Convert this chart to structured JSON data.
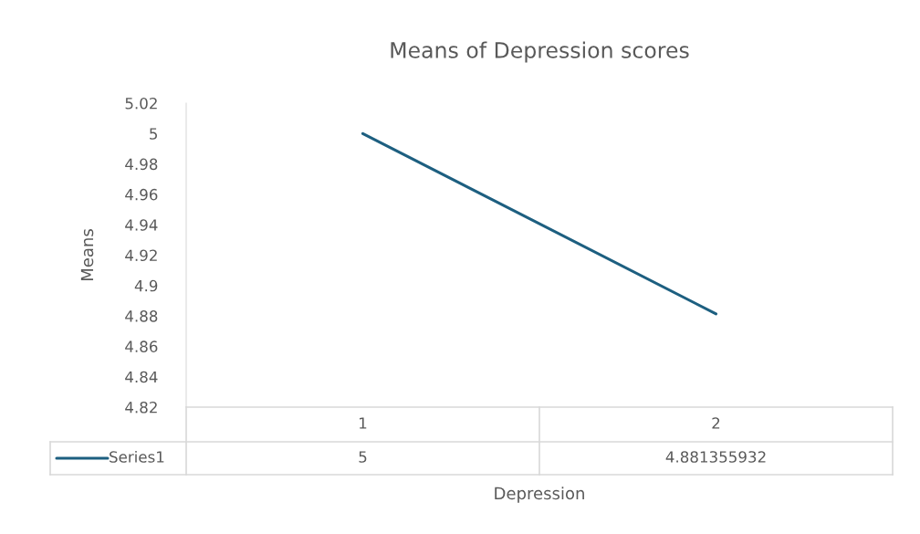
{
  "chart_data": {
    "type": "line",
    "title": "Means of Depression scores",
    "xlabel": "Depression",
    "ylabel": "Means",
    "categories": [
      "1",
      "2"
    ],
    "series": [
      {
        "name": "Series1",
        "color": "#1d5f80",
        "values": [
          5,
          4.881355932
        ]
      }
    ],
    "ylim": [
      4.82,
      5.02
    ],
    "yticks": [
      {
        "value": 5.02,
        "label": "5.02"
      },
      {
        "value": 5.0,
        "label": "5"
      },
      {
        "value": 4.98,
        "label": "4.98"
      },
      {
        "value": 4.96,
        "label": "4.96"
      },
      {
        "value": 4.94,
        "label": "4.94"
      },
      {
        "value": 4.92,
        "label": "4.92"
      },
      {
        "value": 4.9,
        "label": "4.9"
      },
      {
        "value": 4.88,
        "label": "4.88"
      },
      {
        "value": 4.86,
        "label": "4.86"
      },
      {
        "value": 4.84,
        "label": "4.84"
      },
      {
        "value": 4.82,
        "label": "4.82"
      }
    ],
    "data_labels": true,
    "legend": "bottom",
    "grid": false,
    "marker": "none",
    "line_style": "solid"
  }
}
